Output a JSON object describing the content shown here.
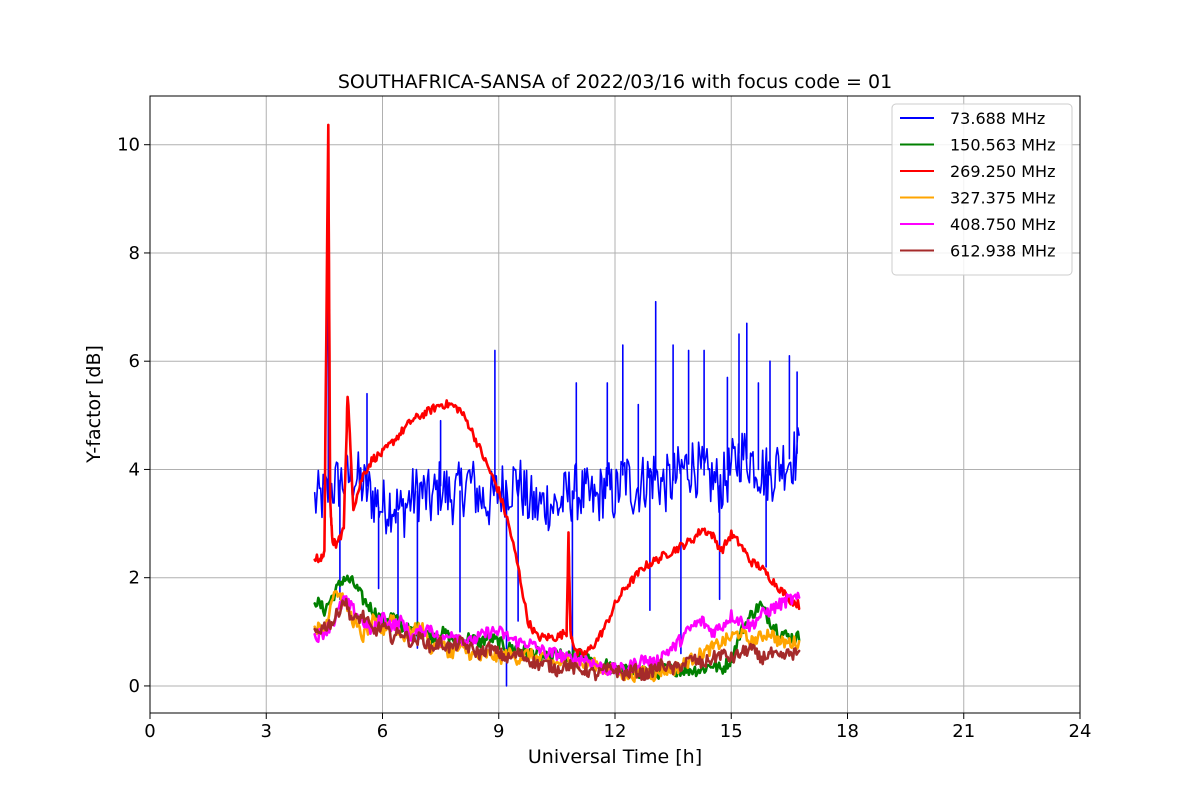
{
  "chart_data": {
    "type": "line",
    "title": "SOUTHAFRICA-SANSA of 2022/03/16 with focus code = 01",
    "xlabel": "Universal Time [h]",
    "ylabel": "Y-factor [dB]",
    "xlim": [
      0,
      24
    ],
    "ylim": [
      -0.5,
      10.9
    ],
    "xticks": [
      0,
      3,
      6,
      9,
      12,
      15,
      18,
      21,
      24
    ],
    "yticks": [
      0,
      2,
      4,
      6,
      8,
      10
    ],
    "grid": true,
    "legend_position": "top-right",
    "series": [
      {
        "name": " 73.688 MHz",
        "color": "#0000ff",
        "x": [
          4.25,
          4.5,
          4.75,
          5.0,
          5.25,
          5.5,
          5.75,
          6.0,
          6.25,
          6.5,
          6.75,
          7.0,
          7.25,
          7.5,
          7.75,
          8.0,
          8.25,
          8.5,
          8.75,
          9.0,
          9.25,
          9.5,
          9.75,
          10.0,
          10.25,
          10.5,
          10.75,
          11.0,
          11.25,
          11.5,
          11.75,
          12.0,
          12.25,
          12.5,
          12.75,
          13.0,
          13.25,
          13.5,
          13.75,
          14.0,
          14.25,
          14.5,
          14.75,
          15.0,
          15.25,
          15.5,
          15.75,
          16.0,
          16.25,
          16.5,
          16.75
        ],
        "y": [
          3.4,
          3.5,
          3.7,
          3.8,
          3.9,
          3.7,
          3.5,
          3.3,
          3.4,
          3.2,
          3.5,
          3.6,
          3.4,
          3.7,
          3.5,
          3.6,
          3.8,
          3.5,
          3.4,
          3.6,
          3.7,
          3.8,
          3.4,
          3.3,
          3.4,
          3.3,
          3.5,
          3.6,
          3.5,
          3.4,
          3.7,
          3.5,
          3.9,
          3.6,
          3.8,
          3.9,
          3.7,
          3.8,
          4.0,
          4.1,
          3.9,
          3.8,
          3.7,
          4.0,
          4.3,
          4.2,
          4.0,
          3.9,
          4.1,
          4.2,
          4.3
        ],
        "spikes": [
          [
            4.6,
            7.6
          ],
          [
            5.6,
            5.4
          ],
          [
            7.5,
            4.9
          ],
          [
            8.9,
            6.2
          ],
          [
            11.0,
            5.6
          ],
          [
            11.8,
            5.6
          ],
          [
            12.2,
            6.3
          ],
          [
            12.6,
            5.2
          ],
          [
            13.05,
            7.1
          ],
          [
            13.5,
            6.3
          ],
          [
            13.9,
            6.2
          ],
          [
            14.3,
            6.2
          ],
          [
            14.9,
            5.7
          ],
          [
            15.2,
            6.5
          ],
          [
            15.4,
            6.7
          ],
          [
            15.7,
            5.6
          ],
          [
            16.0,
            6.0
          ],
          [
            16.5,
            6.1
          ],
          [
            16.7,
            5.8
          ],
          [
            4.9,
            1.6
          ],
          [
            5.9,
            1.8
          ],
          [
            6.4,
            1.1
          ],
          [
            6.9,
            0.7
          ],
          [
            8.0,
            1.0
          ],
          [
            9.2,
            0.0
          ],
          [
            9.5,
            1.2
          ],
          [
            10.9,
            0.5
          ],
          [
            12.9,
            1.4
          ],
          [
            13.7,
            0.6
          ],
          [
            14.7,
            1.6
          ],
          [
            15.9,
            2.2
          ]
        ]
      },
      {
        "name": "150.563 MHz",
        "color": "#008000",
        "x": [
          4.25,
          4.5,
          4.75,
          5.0,
          5.25,
          5.5,
          5.75,
          6.0,
          6.25,
          6.5,
          6.75,
          7.0,
          7.25,
          7.5,
          7.75,
          8.0,
          8.25,
          8.5,
          8.75,
          9.0,
          9.25,
          9.5,
          9.75,
          10.0,
          10.25,
          10.5,
          10.75,
          11.0,
          11.25,
          11.5,
          11.75,
          12.0,
          12.25,
          12.5,
          12.75,
          13.0,
          13.25,
          13.5,
          13.75,
          14.0,
          14.25,
          14.5,
          14.75,
          15.0,
          15.25,
          15.5,
          15.75,
          16.0,
          16.25,
          16.5,
          16.75
        ],
        "y": [
          1.6,
          1.4,
          1.7,
          2.0,
          1.9,
          1.6,
          1.4,
          1.2,
          1.3,
          1.1,
          1.0,
          1.1,
          0.9,
          1.0,
          0.9,
          0.8,
          0.9,
          0.8,
          0.9,
          0.8,
          0.7,
          0.7,
          0.6,
          0.6,
          0.5,
          0.6,
          0.5,
          0.6,
          0.5,
          0.4,
          0.4,
          0.3,
          0.3,
          0.2,
          0.3,
          0.2,
          0.3,
          0.3,
          0.3,
          0.3,
          0.3,
          0.4,
          0.3,
          0.5,
          1.0,
          1.3,
          1.5,
          1.2,
          1.0,
          0.9,
          0.9
        ]
      },
      {
        "name": "269.250 MHz",
        "color": "#ff0000",
        "x": [
          4.25,
          4.4,
          4.5,
          4.6,
          4.65,
          4.7,
          4.8,
          5.0,
          5.1,
          5.25,
          5.5,
          5.75,
          6.0,
          6.25,
          6.5,
          6.75,
          7.0,
          7.25,
          7.5,
          7.75,
          8.0,
          8.25,
          8.5,
          8.75,
          9.0,
          9.25,
          9.5,
          9.75,
          10.0,
          10.25,
          10.5,
          10.75,
          10.8,
          10.85,
          11.0,
          11.25,
          11.5,
          11.75,
          12.0,
          12.25,
          12.5,
          12.75,
          13.0,
          13.25,
          13.5,
          13.75,
          14.0,
          14.25,
          14.5,
          14.75,
          15.0,
          15.25,
          15.5,
          15.75,
          16.0,
          16.25,
          16.5,
          16.75
        ],
        "y": [
          2.4,
          2.3,
          2.5,
          10.4,
          3.5,
          2.7,
          2.6,
          2.9,
          5.4,
          3.3,
          3.9,
          4.2,
          4.3,
          4.5,
          4.7,
          4.9,
          5.0,
          5.1,
          5.2,
          5.2,
          5.1,
          4.8,
          4.4,
          4.0,
          3.6,
          3.0,
          2.2,
          1.2,
          0.9,
          0.9,
          0.9,
          1.0,
          2.8,
          1.0,
          0.6,
          0.6,
          0.8,
          1.1,
          1.5,
          1.8,
          2.0,
          2.2,
          2.3,
          2.4,
          2.5,
          2.6,
          2.7,
          2.9,
          2.8,
          2.5,
          2.8,
          2.6,
          2.3,
          2.2,
          2.0,
          1.8,
          1.6,
          1.5
        ]
      },
      {
        "name": "327.375 MHz",
        "color": "#ffa500",
        "x": [
          4.25,
          4.5,
          4.75,
          5.0,
          5.25,
          5.5,
          5.75,
          6.0,
          6.25,
          6.5,
          6.75,
          7.0,
          7.25,
          7.5,
          7.75,
          8.0,
          8.25,
          8.5,
          8.75,
          9.0,
          9.25,
          9.5,
          9.75,
          10.0,
          10.25,
          10.5,
          10.75,
          11.0,
          11.25,
          11.5,
          11.75,
          12.0,
          12.25,
          12.5,
          12.75,
          13.0,
          13.25,
          13.5,
          13.75,
          14.0,
          14.25,
          14.5,
          14.75,
          15.0,
          15.25,
          15.5,
          15.75,
          16.0,
          16.25,
          16.5,
          16.75
        ],
        "y": [
          1.1,
          1.0,
          1.8,
          1.6,
          1.2,
          0.9,
          1.2,
          1.0,
          1.3,
          0.9,
          1.0,
          1.1,
          0.7,
          0.8,
          0.6,
          0.7,
          0.6,
          0.5,
          0.6,
          0.5,
          0.6,
          0.5,
          0.6,
          0.5,
          0.5,
          0.4,
          0.5,
          0.4,
          0.4,
          0.4,
          0.3,
          0.3,
          0.2,
          0.2,
          0.3,
          0.2,
          0.3,
          0.3,
          0.4,
          0.5,
          0.6,
          0.7,
          0.8,
          0.9,
          1.0,
          0.8,
          0.9,
          1.0,
          0.8,
          0.8,
          0.8
        ]
      },
      {
        "name": "408.750 MHz",
        "color": "#ff00ff",
        "x": [
          4.25,
          4.5,
          4.75,
          5.0,
          5.25,
          5.5,
          5.75,
          6.0,
          6.25,
          6.5,
          6.75,
          7.0,
          7.25,
          7.5,
          7.75,
          8.0,
          8.25,
          8.5,
          8.75,
          9.0,
          9.25,
          9.5,
          9.75,
          10.0,
          10.25,
          10.5,
          10.75,
          11.0,
          11.25,
          11.5,
          11.75,
          12.0,
          12.25,
          12.5,
          12.75,
          13.0,
          13.25,
          13.5,
          13.75,
          14.0,
          14.25,
          14.5,
          14.75,
          15.0,
          15.25,
          15.5,
          15.75,
          16.0,
          16.25,
          16.5,
          16.75
        ],
        "y": [
          0.9,
          1.0,
          1.2,
          1.6,
          1.4,
          1.2,
          1.0,
          1.3,
          1.1,
          1.2,
          0.9,
          1.0,
          1.1,
          0.8,
          1.0,
          0.9,
          0.8,
          0.9,
          1.0,
          1.0,
          0.9,
          0.8,
          0.8,
          0.7,
          0.6,
          0.6,
          0.5,
          0.5,
          0.5,
          0.4,
          0.3,
          0.3,
          0.3,
          0.4,
          0.5,
          0.4,
          0.6,
          0.7,
          0.9,
          1.1,
          1.2,
          1.0,
          1.1,
          1.3,
          1.2,
          1.1,
          1.3,
          1.4,
          1.5,
          1.6,
          1.6
        ]
      },
      {
        "name": "612.938 MHz",
        "color": "#a52a2a",
        "x": [
          4.25,
          4.5,
          4.75,
          5.0,
          5.25,
          5.5,
          5.75,
          6.0,
          6.25,
          6.5,
          6.75,
          7.0,
          7.25,
          7.5,
          7.75,
          8.0,
          8.25,
          8.5,
          8.75,
          9.0,
          9.25,
          9.5,
          9.75,
          10.0,
          10.25,
          10.5,
          10.75,
          11.0,
          11.25,
          11.5,
          11.75,
          12.0,
          12.25,
          12.5,
          12.75,
          13.0,
          13.25,
          13.5,
          13.75,
          14.0,
          14.25,
          14.5,
          14.75,
          15.0,
          15.25,
          15.5,
          15.75,
          16.0,
          16.25,
          16.5,
          16.75
        ],
        "y": [
          1.0,
          1.1,
          1.2,
          1.6,
          1.2,
          1.3,
          1.0,
          1.1,
          0.9,
          1.0,
          0.8,
          0.9,
          0.7,
          0.8,
          0.7,
          0.8,
          0.7,
          0.6,
          0.7,
          0.6,
          0.5,
          0.6,
          0.5,
          0.4,
          0.4,
          0.3,
          0.4,
          0.3,
          0.3,
          0.2,
          0.3,
          0.3,
          0.2,
          0.3,
          0.2,
          0.3,
          0.4,
          0.3,
          0.4,
          0.5,
          0.4,
          0.5,
          0.6,
          0.5,
          0.6,
          0.7,
          0.5,
          0.6,
          0.5,
          0.6,
          0.6
        ]
      }
    ]
  }
}
